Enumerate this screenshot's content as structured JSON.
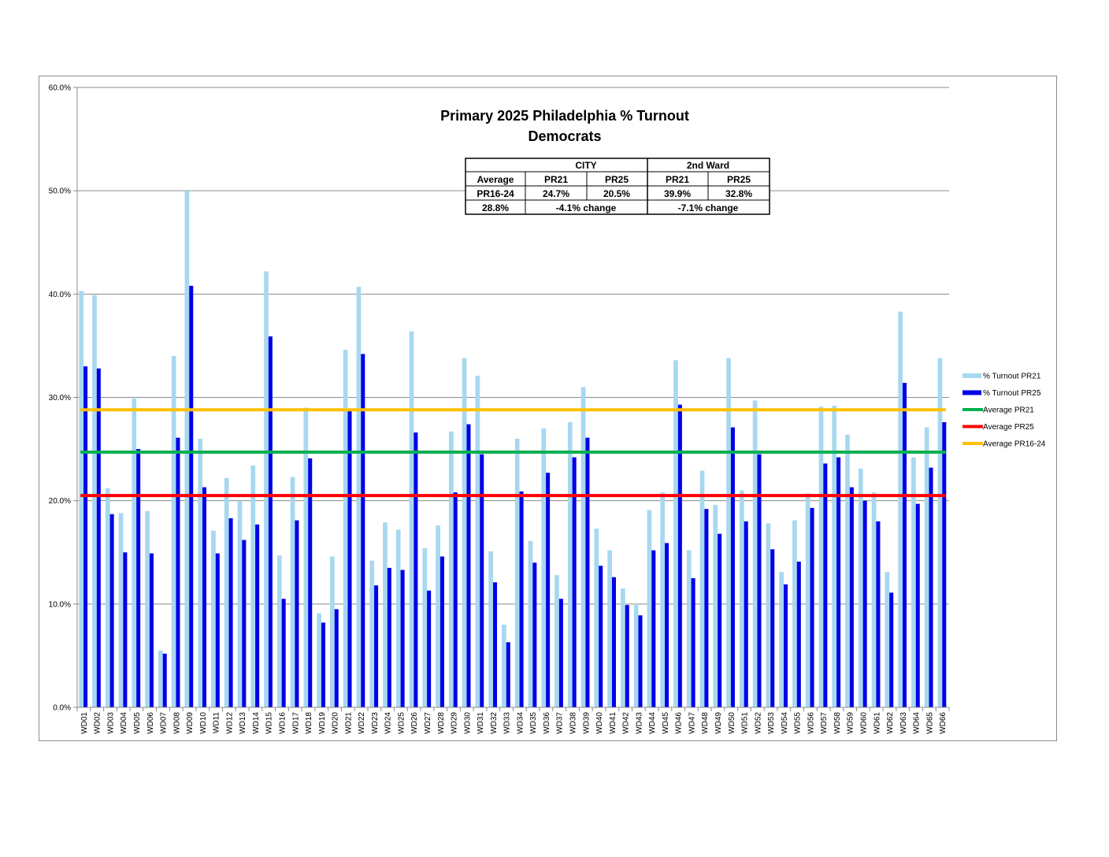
{
  "chart_data": {
    "type": "bar",
    "title": "Primary 2025 Philadelphia % Turnout",
    "subtitle": "Democrats",
    "ylim": [
      0,
      60
    ],
    "yticks": [
      "0.0%",
      "10.0%",
      "20.0%",
      "30.0%",
      "40.0%",
      "50.0%",
      "60.0%"
    ],
    "grid": true,
    "legend_position": "right",
    "categories": [
      "WD01",
      "WD02",
      "WD03",
      "WD04",
      "WD05",
      "WD06",
      "WD07",
      "WD08",
      "WD09",
      "WD10",
      "WD11",
      "WD12",
      "WD13",
      "WD14",
      "WD15",
      "WD16",
      "WD17",
      "WD18",
      "WD19",
      "WD20",
      "WD21",
      "WD22",
      "WD23",
      "WD24",
      "WD25",
      "WD26",
      "WD27",
      "WD28",
      "WD29",
      "WD30",
      "WD31",
      "WD32",
      "WD33",
      "WD34",
      "WD35",
      "WD36",
      "WD37",
      "WD38",
      "WD39",
      "WD40",
      "WD41",
      "WD42",
      "WD43",
      "WD44",
      "WD45",
      "WD46",
      "WD47",
      "WD48",
      "WD49",
      "WD50",
      "WD51",
      "WD52",
      "WD53",
      "WD54",
      "WD55",
      "WD56",
      "WD57",
      "WD58",
      "WD59",
      "WD60",
      "WD61",
      "WD62",
      "WD63",
      "WD64",
      "WD65",
      "WD66"
    ],
    "series": [
      {
        "name": "% Turnout PR21",
        "color": "#a8d8f0",
        "values": [
          40.3,
          39.9,
          21.2,
          18.8,
          29.9,
          19.0,
          5.5,
          34.0,
          50.0,
          26.0,
          17.1,
          22.2,
          20.0,
          23.4,
          42.2,
          14.7,
          22.3,
          29.0,
          9.1,
          14.6,
          34.6,
          40.7,
          14.2,
          17.9,
          17.2,
          36.4,
          15.4,
          17.6,
          26.7,
          33.8,
          32.1,
          15.1,
          8.0,
          26.0,
          16.1,
          27.0,
          12.8,
          27.6,
          31.0,
          17.3,
          15.2,
          11.5,
          9.9,
          19.1,
          20.8,
          33.6,
          15.2,
          22.9,
          19.6,
          33.8,
          21.0,
          29.7,
          17.8,
          13.1,
          18.1,
          20.7,
          29.1,
          29.2,
          26.4,
          23.1,
          20.8,
          13.1,
          38.3,
          24.2,
          27.1,
          33.8
        ]
      },
      {
        "name": "% Turnout PR25",
        "color": "#0000e6",
        "values": [
          33.0,
          32.8,
          18.7,
          15.0,
          25.0,
          14.9,
          5.2,
          26.1,
          40.8,
          21.3,
          14.9,
          18.3,
          16.2,
          17.7,
          35.9,
          10.5,
          18.1,
          24.1,
          8.2,
          9.5,
          28.8,
          34.2,
          11.8,
          13.5,
          13.3,
          26.6,
          11.3,
          14.6,
          20.8,
          27.4,
          24.5,
          12.1,
          6.3,
          20.9,
          14.0,
          22.7,
          10.5,
          24.2,
          26.1,
          13.7,
          12.6,
          9.9,
          8.9,
          15.2,
          15.9,
          29.3,
          12.5,
          19.2,
          16.8,
          27.1,
          18.0,
          24.5,
          15.3,
          11.9,
          14.1,
          19.3,
          23.6,
          24.2,
          21.3,
          20.0,
          18.0,
          11.1,
          31.4,
          19.7,
          23.2,
          27.6
        ]
      }
    ],
    "reference_lines": [
      {
        "name": "Average PR21",
        "value": 24.7,
        "color": "#00b050"
      },
      {
        "name": "Average PR25",
        "value": 20.5,
        "color": "#ff0000"
      },
      {
        "name": "Average PR16-24",
        "value": 28.8,
        "color": "#ffc000"
      }
    ],
    "summary_table": {
      "group_city": "CITY",
      "group_ward": "2nd Ward",
      "row_header_1": "Average",
      "row_header_2": "PR16-24",
      "col_pr21": "PR21",
      "col_pr25": "PR25",
      "avg_value": "28.8%",
      "city_pr21": "24.7%",
      "city_pr25": "20.5%",
      "city_change": "-4.1% change",
      "ward_pr21": "39.9%",
      "ward_pr25": "32.8%",
      "ward_change": "-7.1% change"
    }
  }
}
